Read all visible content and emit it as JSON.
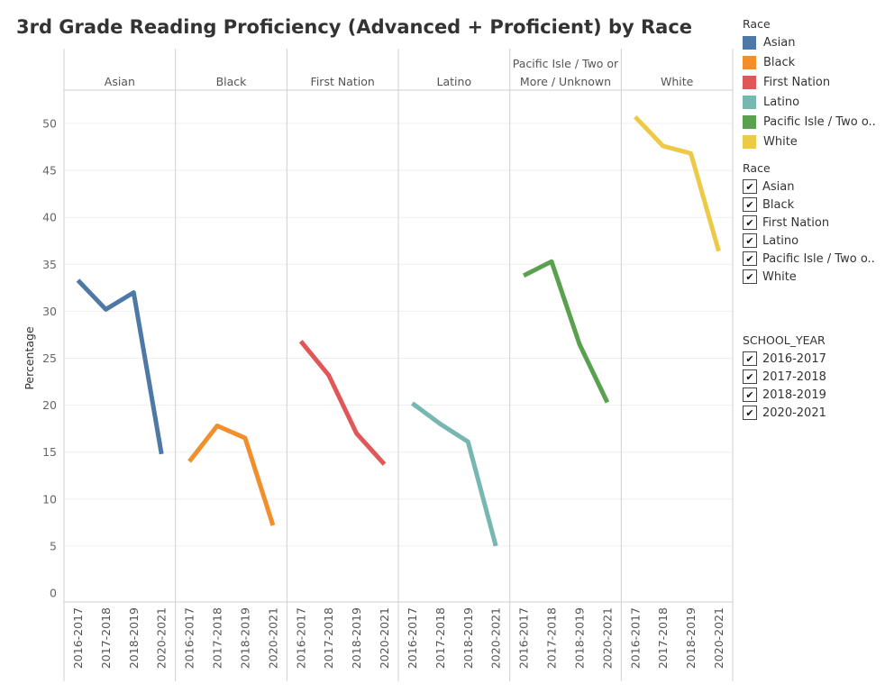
{
  "title": "3rd Grade Reading Proficiency (Advanced + Proficient) by Race",
  "color_legend": {
    "title": "Race",
    "items": [
      {
        "label": "Asian",
        "color": "#4e79a7"
      },
      {
        "label": "Black",
        "color": "#f28e2b"
      },
      {
        "label": "First Nation",
        "color": "#e15759"
      },
      {
        "label": "Latino",
        "color": "#76b7b2"
      },
      {
        "label": "Pacific Isle / Two o..",
        "color": "#59a14f"
      },
      {
        "label": "White",
        "color": "#edc948"
      }
    ]
  },
  "race_filter": {
    "title": "Race",
    "items": [
      {
        "label": "Asian",
        "checked": true
      },
      {
        "label": "Black",
        "checked": true
      },
      {
        "label": "First Nation",
        "checked": true
      },
      {
        "label": "Latino",
        "checked": true
      },
      {
        "label": "Pacific Isle / Two o..",
        "checked": true
      },
      {
        "label": "White",
        "checked": true
      }
    ]
  },
  "year_filter": {
    "title": "SCHOOL_YEAR",
    "items": [
      {
        "label": "2016-2017",
        "checked": true
      },
      {
        "label": "2017-2018",
        "checked": true
      },
      {
        "label": "2018-2019",
        "checked": true
      },
      {
        "label": "2020-2021",
        "checked": true
      }
    ]
  },
  "chart_data": {
    "type": "line",
    "ylabel": "Percentage",
    "xlabel": "",
    "ylim": [
      0,
      53
    ],
    "yticks": [
      0,
      5,
      10,
      15,
      20,
      25,
      30,
      35,
      40,
      45,
      50
    ],
    "grid": true,
    "categories": [
      "2016-2017",
      "2017-2018",
      "2018-2019",
      "2020-2021"
    ],
    "panels": [
      {
        "header": [
          "Asian"
        ],
        "color": "#4e79a7",
        "values": [
          33.3,
          30.2,
          32.0,
          14.8
        ]
      },
      {
        "header": [
          "Black"
        ],
        "color": "#f28e2b",
        "values": [
          14.0,
          17.8,
          16.5,
          7.2
        ]
      },
      {
        "header": [
          "First Nation"
        ],
        "color": "#e15759",
        "values": [
          26.8,
          23.2,
          17.0,
          13.7
        ]
      },
      {
        "header": [
          "Latino"
        ],
        "color": "#76b7b2",
        "values": [
          20.2,
          18.0,
          16.1,
          5.0
        ]
      },
      {
        "header": [
          "Pacific Isle / Two or",
          "More / Unknown"
        ],
        "color": "#59a14f",
        "values": [
          33.8,
          35.3,
          26.5,
          20.3
        ]
      },
      {
        "header": [
          "White"
        ],
        "color": "#edc948",
        "values": [
          50.7,
          47.6,
          46.8,
          36.4
        ]
      }
    ]
  }
}
